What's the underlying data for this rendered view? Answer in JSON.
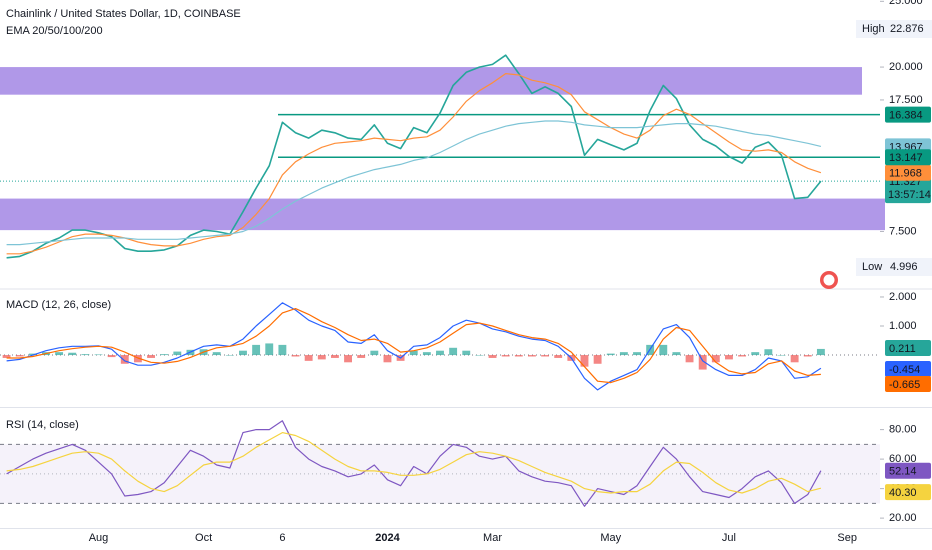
{
  "chart_data": [
    {
      "type": "line",
      "title": "Chainlink / United States Dollar, 1D, COINBASE",
      "subtitle": "EMA 20/50/100/200",
      "categories": [
        null,
        null,
        null,
        null,
        null,
        null,
        null,
        "Aug",
        null,
        null,
        null,
        null,
        null,
        null,
        null,
        "Oct",
        null,
        null,
        null,
        null,
        null,
        "6",
        null,
        null,
        null,
        null,
        null,
        null,
        null,
        "2024",
        null,
        null,
        null,
        null,
        null,
        null,
        null,
        "Mar",
        null,
        null,
        null,
        null,
        null,
        null,
        null,
        null,
        "May",
        null,
        null,
        null,
        null,
        null,
        null,
        null,
        null,
        "Jul",
        null,
        null,
        null,
        null,
        null,
        null,
        null,
        null,
        "Sep",
        null,
        null
      ],
      "ylim": [
        3.2,
        25.1
      ],
      "yticks": [
        {
          "value": 25,
          "label": "25.000"
        },
        {
          "value": 20,
          "label": "20.000"
        },
        {
          "value": 17.5,
          "label": "17.500"
        },
        {
          "value": 7.5,
          "label": "7.500"
        }
      ],
      "series": [
        {
          "color": "#26a69a",
          "values": [
            5.5,
            5.6,
            6.0,
            6.6,
            7.0,
            7.6,
            7.6,
            7.4,
            7.1,
            6.2,
            6.0,
            6.0,
            6.1,
            6.4,
            7.2,
            7.6,
            7.5,
            7.3,
            9.0,
            10.8,
            12.5,
            15.8,
            15.0,
            14.6,
            15.2,
            15.0,
            14.6,
            14.5,
            15.6,
            14.2,
            13.8,
            15.4,
            15.0,
            16.5,
            18.6,
            19.6,
            20.0,
            20.2,
            20.9,
            19.5,
            18.0,
            18.5,
            18.0,
            17.0,
            13.3,
            14.5,
            14.1,
            13.7,
            14.2,
            16.7,
            18.6,
            17.6,
            15.6,
            14.5,
            14.0,
            13.2,
            12.7,
            13.9,
            14.3,
            13.3,
            10.0,
            10.1,
            11.327,
            null,
            null,
            null,
            null
          ]
        },
        {
          "color": "#ff8f3a",
          "values": [
            5.8,
            5.8,
            6.0,
            6.3,
            6.7,
            7.1,
            7.3,
            7.3,
            7.2,
            7.0,
            6.7,
            6.5,
            6.4,
            6.4,
            6.6,
            6.9,
            7.1,
            7.2,
            7.8,
            8.8,
            10.0,
            11.8,
            12.8,
            13.4,
            13.9,
            14.2,
            14.3,
            14.4,
            14.6,
            14.5,
            14.4,
            14.6,
            14.7,
            15.2,
            16.2,
            17.4,
            18.2,
            18.8,
            19.5,
            19.4,
            19.0,
            18.8,
            18.5,
            17.9,
            16.6,
            16.0,
            15.4,
            14.9,
            14.6,
            15.2,
            16.3,
            16.8,
            16.4,
            15.7,
            15.0,
            14.3,
            13.7,
            13.6,
            13.7,
            13.5,
            12.8,
            12.3,
            11.968,
            null,
            null,
            null,
            null
          ]
        },
        {
          "color": "#7ec4d6",
          "values": [
            6.5,
            6.5,
            6.6,
            6.7,
            6.8,
            6.9,
            7.0,
            7.0,
            7.0,
            7.0,
            6.9,
            6.9,
            6.9,
            6.9,
            7.0,
            7.1,
            7.2,
            7.3,
            7.5,
            7.9,
            8.5,
            9.2,
            9.8,
            10.3,
            10.8,
            11.2,
            11.6,
            11.9,
            12.2,
            12.4,
            12.6,
            12.9,
            13.1,
            13.5,
            14.0,
            14.5,
            14.9,
            15.2,
            15.5,
            15.7,
            15.8,
            15.9,
            15.9,
            15.8,
            15.6,
            15.5,
            15.4,
            15.4,
            15.4,
            15.5,
            15.6,
            15.7,
            15.7,
            15.6,
            15.5,
            15.3,
            15.1,
            14.9,
            14.8,
            14.6,
            14.4,
            14.2,
            13.967,
            null,
            null,
            null,
            null
          ]
        }
      ],
      "levels": [
        {
          "value": 16.384,
          "color": "#089981"
        },
        {
          "value": 13.147,
          "color": "#089981"
        }
      ],
      "zones": [
        [
          17.9,
          20.0
        ],
        [
          7.6,
          10.0
        ]
      ],
      "zone_color": "#9575e0",
      "countdown": "13:57:14",
      "high": {
        "label": "High",
        "value": 22.876
      },
      "low": {
        "label": "Low",
        "value": 4.996
      }
    },
    {
      "type": "macd",
      "title": "MACD (12, 26, close)",
      "ylim": [
        -1.72,
        2.24
      ],
      "yticks": [
        {
          "value": 2,
          "label": "2.000"
        },
        {
          "value": 1,
          "label": "1.000"
        }
      ],
      "histogram": {
        "up_color": "#26a69a",
        "down_color": "#ef5350",
        "values": [
          -0.1,
          -0.05,
          0.05,
          0.1,
          0.1,
          0.08,
          0.03,
          0.02,
          -0.07,
          -0.3,
          -0.25,
          -0.1,
          0.03,
          0.12,
          0.18,
          0.2,
          0.1,
          0.0,
          0.15,
          0.35,
          0.4,
          0.35,
          -0.05,
          -0.2,
          -0.15,
          -0.1,
          -0.25,
          -0.1,
          0.15,
          -0.25,
          -0.2,
          0.15,
          0.1,
          0.15,
          0.25,
          0.15,
          0.0,
          -0.1,
          -0.05,
          -0.05,
          -0.05,
          -0.05,
          -0.1,
          -0.2,
          -0.4,
          -0.3,
          0.05,
          0.1,
          0.1,
          0.35,
          0.35,
          0.1,
          -0.25,
          -0.5,
          -0.25,
          -0.15,
          -0.05,
          0.1,
          0.2,
          0.0,
          -0.25,
          -0.05,
          0.211,
          null,
          null,
          null,
          null
        ]
      },
      "series": [
        {
          "color": "#2962ff",
          "values": [
            -0.2,
            -0.15,
            0.0,
            0.15,
            0.25,
            0.3,
            0.3,
            0.32,
            0.2,
            -0.2,
            -0.35,
            -0.35,
            -0.25,
            -0.1,
            0.1,
            0.3,
            0.35,
            0.3,
            0.55,
            1.0,
            1.4,
            1.8,
            1.55,
            1.2,
            1.0,
            0.85,
            0.45,
            0.4,
            0.7,
            0.15,
            -0.1,
            0.3,
            0.35,
            0.6,
            1.0,
            1.2,
            1.1,
            0.9,
            0.8,
            0.65,
            0.55,
            0.5,
            0.3,
            -0.1,
            -0.8,
            -1.2,
            -0.9,
            -0.7,
            -0.5,
            0.2,
            0.9,
            1.05,
            0.6,
            -0.2,
            -0.5,
            -0.7,
            -0.7,
            -0.5,
            -0.1,
            -0.2,
            -0.8,
            -0.75,
            -0.454,
            null,
            null,
            null,
            null
          ]
        },
        {
          "color": "#ff6d00",
          "values": [
            -0.1,
            -0.1,
            -0.05,
            0.05,
            0.15,
            0.22,
            0.27,
            0.3,
            0.27,
            0.1,
            -0.1,
            -0.25,
            -0.28,
            -0.22,
            -0.08,
            0.1,
            0.25,
            0.3,
            0.4,
            0.65,
            1.0,
            1.45,
            1.6,
            1.4,
            1.15,
            0.95,
            0.7,
            0.5,
            0.55,
            0.4,
            0.1,
            0.15,
            0.25,
            0.45,
            0.75,
            1.05,
            1.1,
            1.0,
            0.85,
            0.7,
            0.6,
            0.55,
            0.4,
            0.1,
            -0.4,
            -0.9,
            -0.95,
            -0.8,
            -0.6,
            -0.15,
            0.55,
            0.95,
            0.85,
            0.3,
            -0.25,
            -0.55,
            -0.65,
            -0.6,
            -0.3,
            -0.2,
            -0.55,
            -0.7,
            -0.665,
            null,
            null,
            null,
            null
          ]
        }
      ]
    },
    {
      "type": "line",
      "title": "RSI (14, close)",
      "ylim": [
        13.3,
        93.3
      ],
      "yticks": [
        {
          "value": 80,
          "label": "80.00"
        },
        {
          "value": 60,
          "label": "60.00"
        },
        {
          "value": 40,
          "label": "40.00"
        },
        {
          "value": 20,
          "label": "20.00"
        }
      ],
      "band": [
        30,
        70
      ],
      "mid": 50,
      "band_color": "#7e57c2",
      "series": [
        {
          "color": "#7e57c2",
          "values": [
            50,
            55,
            60,
            64,
            67,
            70,
            66,
            58,
            50,
            35,
            36,
            38,
            44,
            55,
            66,
            62,
            56,
            54,
            78,
            80,
            80,
            86,
            68,
            60,
            55,
            52,
            48,
            50,
            56,
            46,
            42,
            55,
            50,
            62,
            70,
            68,
            62,
            60,
            62,
            52,
            48,
            45,
            44,
            42,
            28,
            40,
            38,
            36,
            42,
            55,
            68,
            60,
            48,
            38,
            36,
            34,
            40,
            48,
            52,
            44,
            30,
            36,
            52.14,
            null,
            null,
            null,
            null
          ]
        },
        {
          "color": "#f5d33f",
          "last_label": "40.30",
          "values": [
            52,
            53,
            55,
            58,
            61,
            64,
            65,
            64,
            60,
            52,
            45,
            40,
            38,
            42,
            49,
            56,
            58,
            58,
            62,
            68,
            73,
            78,
            76,
            72,
            66,
            60,
            55,
            52,
            52,
            51,
            49,
            49,
            50,
            53,
            58,
            63,
            65,
            64,
            62,
            59,
            55,
            51,
            48,
            45,
            40,
            38,
            37,
            38,
            38,
            43,
            52,
            58,
            57,
            51,
            44,
            39,
            37,
            40,
            45,
            47,
            43,
            38,
            40.3,
            null,
            null,
            null,
            null
          ]
        }
      ]
    }
  ]
}
